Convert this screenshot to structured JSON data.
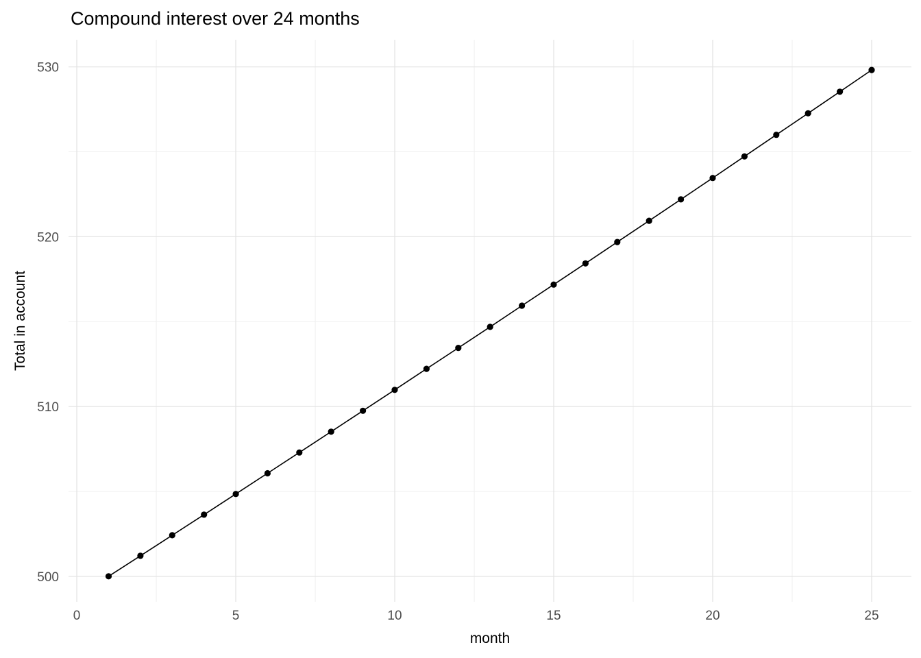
{
  "chart": {
    "title": "Compound interest over 24 months",
    "xlabel": "month",
    "ylabel": "Total in account"
  },
  "chart_data": {
    "type": "line",
    "title": "Compound interest over 24 months",
    "xlabel": "month",
    "ylabel": "Total in account",
    "series_name": "Total in account",
    "x": [
      1,
      2,
      3,
      4,
      5,
      6,
      7,
      8,
      9,
      10,
      11,
      12,
      13,
      14,
      15,
      16,
      17,
      18,
      19,
      20,
      21,
      22,
      23,
      24,
      25
    ],
    "y": [
      500.0,
      501.21,
      502.42,
      503.63,
      504.85,
      506.07,
      507.29,
      508.52,
      509.75,
      510.98,
      512.22,
      513.45,
      514.69,
      515.94,
      517.18,
      518.43,
      519.69,
      520.94,
      522.2,
      523.46,
      524.73,
      526.0,
      527.27,
      528.54,
      529.82
    ],
    "x_ticks": [
      0,
      5,
      10,
      15,
      20,
      25
    ],
    "y_ticks": [
      500,
      510,
      520,
      530
    ],
    "x_minor_ticks": [
      2.5,
      7.5,
      12.5,
      17.5,
      22.5
    ],
    "y_minor_ticks": [
      505,
      515,
      525
    ],
    "x_domain": [
      -0.26,
      26.25
    ],
    "y_domain": [
      498.5,
      531.6
    ],
    "grid": "on",
    "legend": "none",
    "colors": {
      "point": "#000000",
      "line": "#000000",
      "grid_major": "#e3e3e3",
      "grid_minor": "#efefef",
      "tick_label": "#4d4d4d",
      "background": "#ffffff"
    }
  }
}
